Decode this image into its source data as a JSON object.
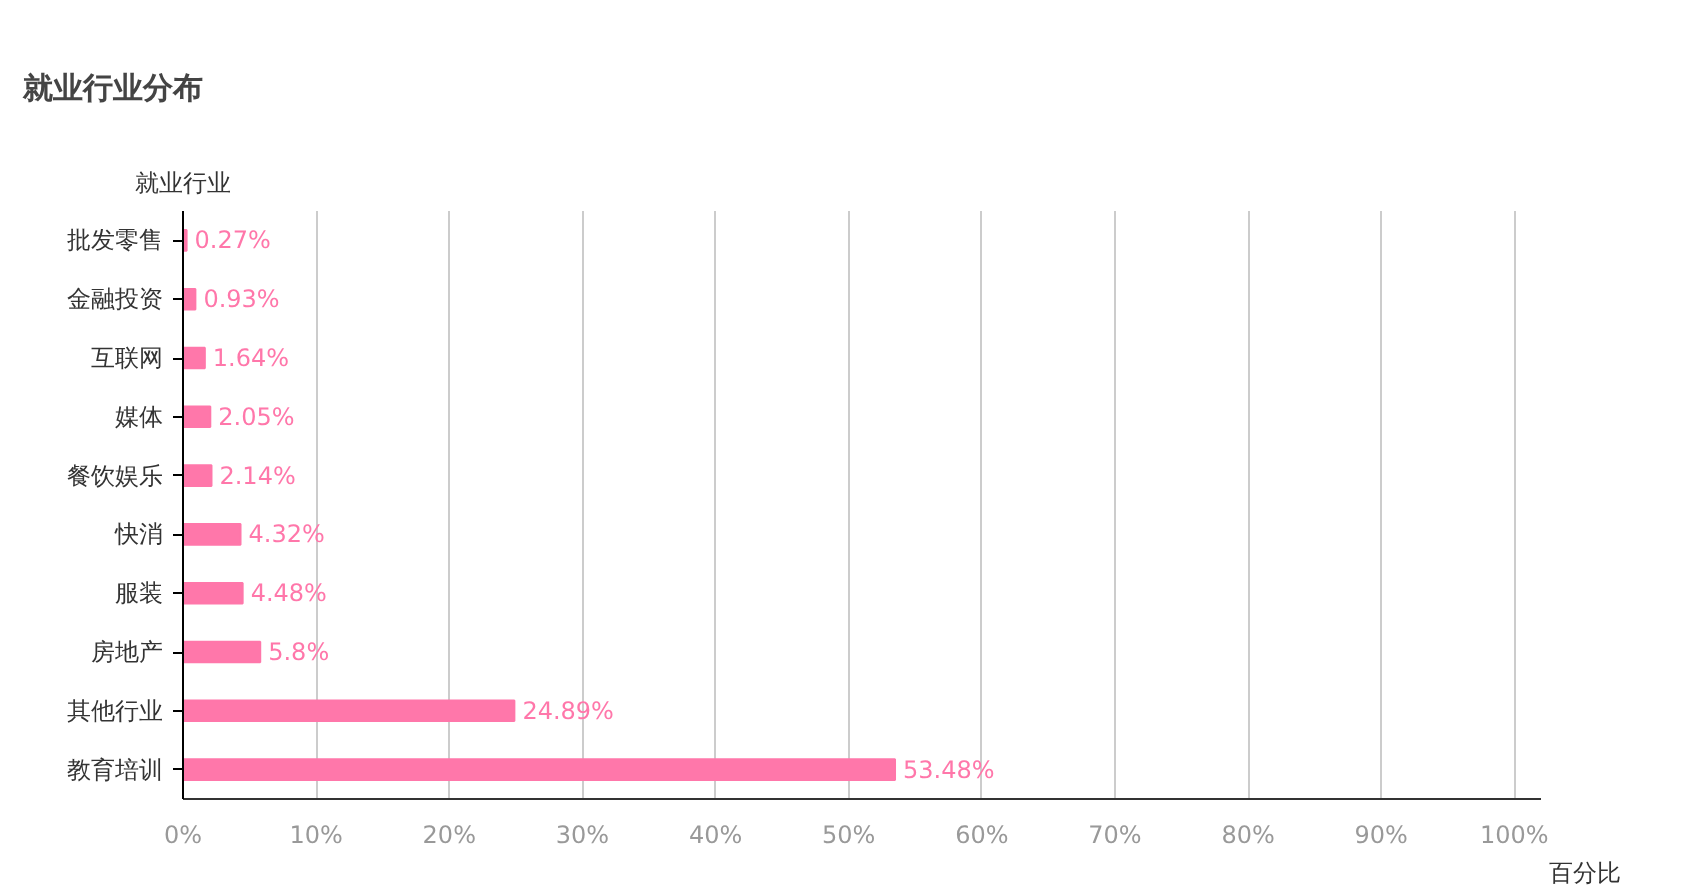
{
  "chart_data": {
    "type": "bar",
    "orientation": "horizontal",
    "title": "就业行业分布",
    "ylabel": "就业行业",
    "xlabel": "百分比",
    "categories": [
      "批发零售",
      "金融投资",
      "互联网",
      "媒体",
      "餐饮娱乐",
      "快消",
      "服装",
      "房地产",
      "其他行业",
      "教育培训"
    ],
    "values": [
      0.27,
      0.93,
      1.64,
      2.05,
      2.14,
      4.32,
      4.48,
      5.8,
      24.89,
      53.48
    ],
    "value_labels": [
      "0.27%",
      "0.93%",
      "1.64%",
      "2.05%",
      "2.14%",
      "4.32%",
      "4.48%",
      "5.8%",
      "24.89%",
      "53.48%"
    ],
    "color": "#ff77aa",
    "xlim": [
      0,
      102
    ],
    "xticks": [
      {
        "value": 0,
        "label": "0%"
      },
      {
        "value": 10,
        "label": "10%"
      },
      {
        "value": 20,
        "label": "20%"
      },
      {
        "value": 30,
        "label": "30%"
      },
      {
        "value": 40,
        "label": "40%"
      },
      {
        "value": 50,
        "label": "50%"
      },
      {
        "value": 60,
        "label": "60%"
      },
      {
        "value": 70,
        "label": "70%"
      },
      {
        "value": 80,
        "label": "80%"
      },
      {
        "value": 90,
        "label": "90%"
      },
      {
        "value": 100,
        "label": "100%"
      }
    ],
    "grid": "x"
  }
}
